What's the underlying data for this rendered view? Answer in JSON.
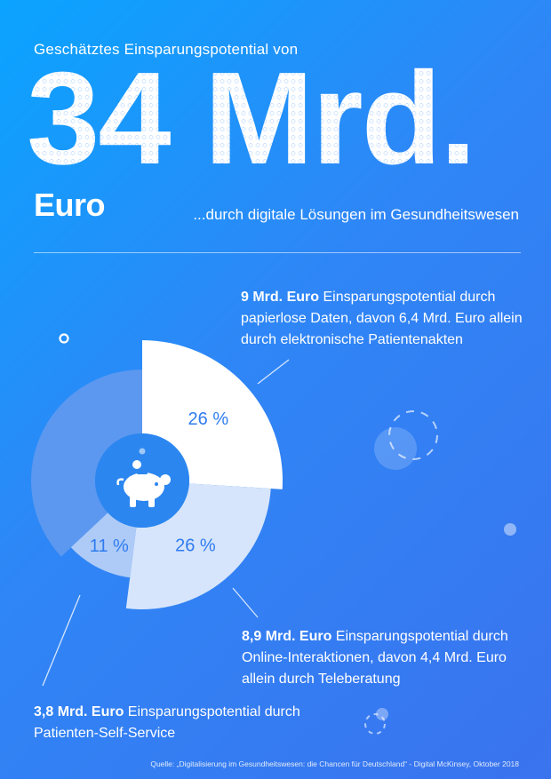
{
  "header": {
    "subtitle": "Geschätztes Einsparungspotential von",
    "big_number": "34 Mrd.",
    "currency": "Euro",
    "tagline": "...durch digitale Lösungen im Gesundheitswesen"
  },
  "chart_data": {
    "type": "pie",
    "total_label": "34 Mrd. Euro",
    "slices": [
      {
        "label": "26 %",
        "value": 26,
        "amount": "9 Mrd. Euro",
        "color": "#ffffff",
        "label_color": "#2f7cf0"
      },
      {
        "label": "26 %",
        "value": 26,
        "amount": "8,9 Mrd. Euro",
        "color": "#d6e5fb",
        "label_color": "#2f7cf0"
      },
      {
        "label": "11 %",
        "value": 11,
        "amount": "3,8 Mrd. Euro",
        "color": "#aecbf7",
        "label_color": "#2f7cf0"
      }
    ],
    "remainder_color": "#5c98f0",
    "center_icon": "piggy-bank-icon",
    "center_color": "#2b86f0"
  },
  "notes": {
    "paper": {
      "bold": "9 Mrd. Euro",
      "text": " Einsparungspotential durch papierlose Daten, davon 6,4 Mrd. Euro allein durch elektronische Patientenakten"
    },
    "online": {
      "bold": "8,9 Mrd. Euro",
      "text": " Einsparungspotential durch Online-Interaktionen, davon 4,4 Mrd. Euro allein durch Teleberatung"
    },
    "self": {
      "bold": "3,8 Mrd. Euro",
      "text": " Einsparungspotential durch Patienten-Self-Service"
    }
  },
  "source": "Quelle: „Digitalisierung im Gesundheitswesen: die Chancen für Deutschland“ - Digital McKinsey, Oktober 2018"
}
